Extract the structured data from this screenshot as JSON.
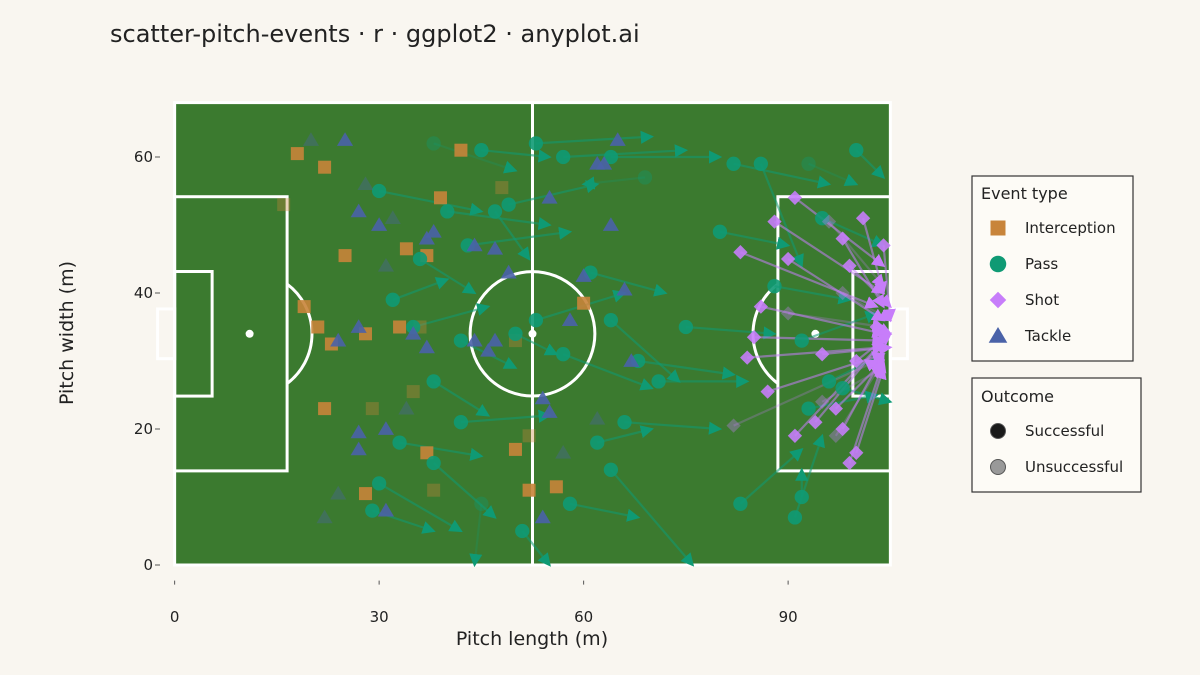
{
  "chart_data": {
    "type": "scatter",
    "title": "scatter-pitch-events · r · ggplot2 · anyplot.ai",
    "x_label": "Pitch length (m)",
    "y_label": "Pitch width (m)",
    "xlim": [
      -2,
      107
    ],
    "ylim": [
      -2,
      70
    ],
    "xticks": [
      0,
      30,
      60,
      90
    ],
    "yticks": [
      0,
      20,
      40,
      60
    ],
    "pitch_color": "#3b7a2f",
    "legend_title": "Event type",
    "outcome_legend": {
      "title": "Outcome",
      "labels": [
        "Successful",
        "Unsuccessful"
      ]
    },
    "series": [
      {
        "name": "Interception",
        "color": "#c8843a",
        "shape": "square",
        "x": [
          18,
          22,
          16,
          39,
          42,
          48,
          25,
          34,
          37,
          19,
          21,
          23,
          28,
          33,
          36,
          60,
          50,
          35,
          22,
          29,
          37,
          50,
          52,
          28,
          38,
          52,
          56
        ],
        "y": [
          60.5,
          58.5,
          53,
          54,
          61,
          55.5,
          45.5,
          46.5,
          45.5,
          38,
          35,
          32.5,
          34,
          35,
          35,
          38.5,
          33,
          25.5,
          23,
          23,
          16.5,
          17,
          19,
          10.5,
          11,
          11,
          11.5
        ],
        "successful": [
          true,
          true,
          false,
          true,
          true,
          false,
          true,
          true,
          true,
          true,
          true,
          true,
          true,
          true,
          false,
          true,
          false,
          false,
          true,
          false,
          true,
          true,
          false,
          true,
          false,
          true,
          true
        ]
      },
      {
        "name": "Pass",
        "color": "#0f9a74",
        "shape": "circle",
        "x": [
          53,
          57,
          64,
          69,
          49,
          45,
          38,
          30,
          40,
          47,
          43,
          36,
          32,
          35,
          42,
          50,
          53,
          57,
          64,
          61,
          68,
          75,
          80,
          82,
          86,
          93,
          100,
          95,
          88,
          92,
          96,
          93,
          38,
          42,
          33,
          38,
          30,
          29,
          45,
          51,
          58,
          64,
          62,
          66,
          71,
          83,
          91,
          92,
          98
        ],
        "y": [
          62,
          60,
          60,
          57,
          53,
          61,
          62,
          55,
          52,
          52,
          47,
          45,
          39,
          35,
          33,
          34,
          36,
          31,
          36,
          43,
          30,
          35,
          49,
          59,
          59,
          59,
          61,
          51,
          41,
          33,
          27,
          23,
          27,
          21,
          18,
          15,
          12,
          8,
          9,
          5,
          9,
          14,
          18,
          21,
          27,
          9,
          7,
          10,
          26
        ],
        "end_x": [
          70,
          75,
          80,
          60,
          62,
          55,
          50,
          45,
          55,
          52,
          58,
          44,
          40,
          46,
          50,
          56,
          66,
          70,
          74,
          72,
          82,
          88,
          90,
          96,
          92,
          100,
          104,
          104,
          99,
          103,
          104,
          103,
          46,
          55,
          45,
          47,
          42,
          38,
          44,
          55,
          68,
          76,
          70,
          80,
          84,
          92,
          95,
          92,
          105
        ],
        "end_y": [
          63,
          61,
          60,
          56,
          56,
          60,
          58,
          52,
          50,
          45,
          49,
          40,
          42,
          38,
          29,
          31,
          40,
          26,
          27,
          40,
          28,
          34,
          47,
          56,
          44,
          56,
          57,
          47,
          39,
          37,
          31,
          25,
          22,
          22,
          16,
          7,
          5,
          5,
          0,
          0,
          7,
          0,
          20,
          20,
          27,
          17,
          19,
          14,
          24
        ],
        "successful": [
          true,
          true,
          true,
          false,
          true,
          true,
          false,
          true,
          true,
          true,
          true,
          true,
          true,
          true,
          true,
          true,
          true,
          true,
          true,
          true,
          true,
          true,
          true,
          true,
          true,
          false,
          true,
          true,
          true,
          true,
          true,
          true,
          true,
          true,
          true,
          true,
          true,
          true,
          false,
          true,
          true,
          true,
          true,
          true,
          true,
          true,
          true,
          true,
          true
        ]
      },
      {
        "name": "Shot",
        "color": "#c77dfa",
        "shape": "diamond",
        "x": [
          91,
          88,
          83,
          90,
          98,
          101,
          104,
          99,
          86,
          85,
          84,
          87,
          97,
          98,
          94,
          91,
          100,
          99,
          103,
          100,
          95,
          96,
          90,
          82,
          95,
          97,
          98
        ],
        "y": [
          54,
          50.5,
          46,
          45,
          48,
          51,
          47,
          44,
          38,
          33.5,
          30.5,
          25.5,
          23,
          20,
          21,
          19,
          16.5,
          15,
          35,
          30,
          31,
          50.5,
          37,
          20.5,
          24,
          19,
          40
        ],
        "end_x": [
          104,
          104,
          103,
          104,
          104,
          104,
          105,
          105,
          104,
          104,
          104,
          104,
          104,
          104,
          104,
          104,
          104,
          104,
          105,
          105,
          105,
          104,
          104,
          103,
          104,
          104,
          105
        ],
        "end_y": [
          44,
          40,
          38,
          36,
          38,
          40,
          36,
          38,
          34,
          33,
          32,
          31,
          30,
          31,
          33,
          33,
          29,
          30,
          34,
          34,
          32,
          41,
          35,
          30,
          29,
          30,
          36
        ],
        "successful": [
          true,
          true,
          true,
          true,
          true,
          true,
          true,
          true,
          true,
          true,
          true,
          true,
          true,
          true,
          true,
          true,
          true,
          true,
          true,
          true,
          true,
          false,
          false,
          false,
          false,
          false,
          false
        ]
      },
      {
        "name": "Tackle",
        "color": "#4a62a8",
        "shape": "triangle",
        "x": [
          25,
          65,
          63,
          62,
          55,
          64,
          27,
          30,
          38,
          37,
          44,
          47,
          49,
          60,
          66,
          27,
          24,
          35,
          37,
          44,
          47,
          46,
          58,
          67,
          54,
          55,
          31,
          27,
          27,
          31,
          54,
          20,
          28,
          32,
          31,
          22,
          34,
          24,
          57,
          62
        ],
        "y": [
          62.5,
          62.5,
          59,
          59,
          54,
          50,
          52,
          50,
          49,
          48,
          47,
          46.5,
          43,
          42.5,
          40.5,
          35,
          33,
          34,
          32,
          33,
          33,
          31.5,
          36,
          30,
          24.5,
          22.5,
          20,
          19.5,
          17,
          8,
          7,
          62.5,
          56,
          51,
          44,
          7,
          23,
          10.5,
          16.5,
          21.5
        ],
        "successful": [
          true,
          true,
          true,
          true,
          true,
          true,
          true,
          true,
          true,
          true,
          true,
          true,
          true,
          true,
          true,
          true,
          true,
          true,
          true,
          true,
          true,
          true,
          true,
          true,
          true,
          true,
          true,
          true,
          true,
          true,
          true,
          false,
          false,
          false,
          false,
          false,
          false,
          false,
          false,
          false
        ]
      }
    ]
  }
}
